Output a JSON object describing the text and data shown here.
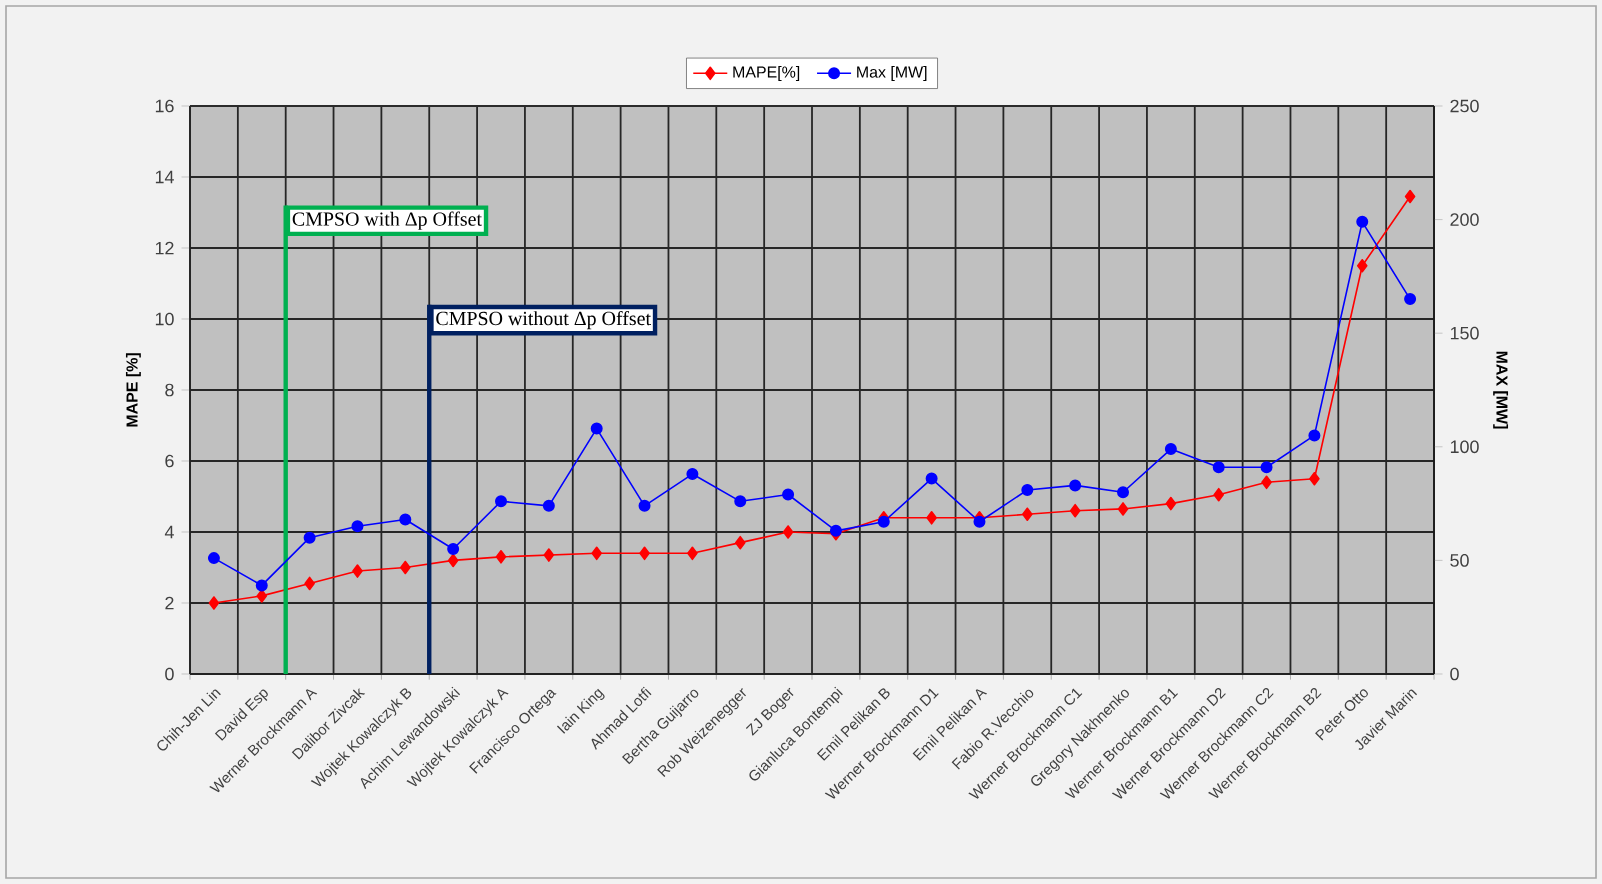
{
  "chart_data": {
    "type": "line",
    "ylabel": "MAPE [%]",
    "y2label": "MAX [MW]",
    "categories": [
      "Chih-Jen Lin",
      "David Esp",
      "Werner Brockmann A",
      "Dalibor Zivcak",
      "Wojtek Kowalczyk B",
      "Achim Lewandowski",
      "Wojtek Kowalczyk A",
      "Francisco Ortega",
      "Iain King",
      "Ahmad Lotfi",
      "Bertha Guijarro",
      "Rob Weizenegger",
      "ZJ Boger",
      "Gianluca Bontempi",
      "Emil Pelikan B",
      "Werner Brockmann D1",
      "Emil Pelikan A",
      "Fabio R.Vecchio",
      "Werner Brockmann C1",
      "Gregory Nakhnenko",
      "Werner Brockmann B1",
      "Werner Brockmann D2",
      "Werner Brockmann C2",
      "Werner Brockmann B2",
      "Peter Otto",
      "Javier Marin"
    ],
    "series": [
      {
        "name": "MAPE[%]",
        "color": "#ff0000",
        "marker": "diamond",
        "axis": "y",
        "values": [
          2.0,
          2.2,
          2.55,
          2.9,
          3.0,
          3.2,
          3.3,
          3.35,
          3.4,
          3.4,
          3.4,
          3.7,
          4.0,
          3.95,
          4.4,
          4.4,
          4.4,
          4.5,
          4.6,
          4.65,
          4.8,
          5.05,
          5.4,
          5.5,
          11.5,
          13.45
        ]
      },
      {
        "name": "Max [MW]",
        "color": "#0000ff",
        "marker": "circle",
        "axis": "y2",
        "values": [
          51,
          39,
          60,
          65,
          68,
          55,
          76,
          74,
          108,
          74,
          88,
          76,
          79,
          63,
          67,
          86,
          67,
          81,
          83,
          80,
          99,
          91,
          91,
          105,
          199,
          165
        ]
      }
    ],
    "ylim": [
      0,
      16
    ],
    "yticks": [
      0,
      2,
      4,
      6,
      8,
      10,
      12,
      14,
      16
    ],
    "y2lim": [
      0,
      250
    ],
    "y2ticks": [
      0,
      50,
      100,
      150,
      200,
      250
    ],
    "grid": true,
    "legend": "top",
    "ref_lines": [
      {
        "axis": "x",
        "value": "Werner Brockmann A",
        "label": "CMPSO with Δp Offset",
        "color": "#00b050"
      },
      {
        "axis": "x",
        "value": "Achim Lewandowski",
        "label": "CMPSO without Δp Offset",
        "color": "#002060"
      }
    ]
  }
}
